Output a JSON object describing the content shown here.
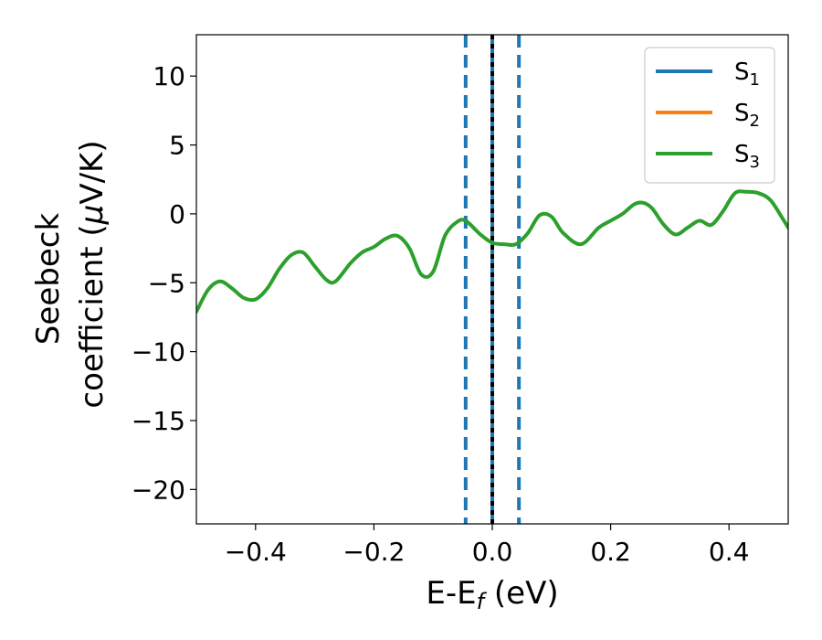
{
  "chart_data": {
    "type": "line",
    "xlabel": {
      "main": "E-E",
      "sub": "f",
      "tail": " (eV)"
    },
    "ylabel": {
      "line1": "Seebeck",
      "line2_pre": "coefficient  (",
      "mu": "μ",
      "line2_post": "V/K)"
    },
    "xlim": [
      -0.5,
      0.5
    ],
    "ylim": [
      -22.5,
      13
    ],
    "xticks": [
      -0.4,
      -0.2,
      0.0,
      0.2,
      0.4
    ],
    "xtick_labels": [
      "−0.4",
      "−0.2",
      "0.0",
      "0.2",
      "0.4"
    ],
    "yticks": [
      10,
      5,
      0,
      -5,
      -10,
      -15,
      -20
    ],
    "ytick_labels": [
      "10",
      "5",
      "0",
      "−5",
      "−10",
      "−15",
      "−20"
    ],
    "grid": false,
    "legend_position": "top-right",
    "series": [
      {
        "name": "S",
        "sub": "1",
        "color": "#1f77b4",
        "x": [],
        "y": []
      },
      {
        "name": "S",
        "sub": "2",
        "color": "#ff7f0e",
        "x": [],
        "y": []
      },
      {
        "name": "S",
        "sub": "3",
        "color": "#2ca02c",
        "x": [
          -0.5,
          -0.48,
          -0.46,
          -0.44,
          -0.42,
          -0.4,
          -0.38,
          -0.36,
          -0.34,
          -0.32,
          -0.3,
          -0.28,
          -0.265,
          -0.24,
          -0.22,
          -0.2,
          -0.18,
          -0.16,
          -0.14,
          -0.12,
          -0.1,
          -0.08,
          -0.06,
          -0.045,
          -0.02,
          0.0,
          0.02,
          0.04,
          0.06,
          0.08,
          0.1,
          0.12,
          0.15,
          0.18,
          0.2,
          0.22,
          0.24,
          0.255,
          0.27,
          0.29,
          0.31,
          0.33,
          0.35,
          0.37,
          0.39,
          0.41,
          0.43,
          0.45,
          0.47,
          0.49,
          0.5
        ],
        "y": [
          -7.1,
          -5.5,
          -4.9,
          -5.4,
          -6.1,
          -6.2,
          -5.4,
          -4.0,
          -3.0,
          -2.8,
          -3.8,
          -4.8,
          -4.9,
          -3.6,
          -2.8,
          -2.4,
          -1.8,
          -1.6,
          -2.5,
          -4.4,
          -4.2,
          -1.6,
          -0.6,
          -0.5,
          -1.5,
          -2.1,
          -2.2,
          -2.2,
          -1.4,
          -0.1,
          -0.2,
          -1.4,
          -2.2,
          -1.0,
          -0.5,
          0.0,
          0.7,
          0.8,
          0.4,
          -0.8,
          -1.5,
          -1.0,
          -0.5,
          -0.8,
          0.2,
          1.5,
          1.6,
          1.5,
          1.0,
          -0.3,
          -1.0
        ]
      }
    ],
    "vlines": [
      {
        "x": -0.045,
        "style": "dashed",
        "color": "#1f77b4"
      },
      {
        "x": 0.045,
        "style": "dashed",
        "color": "#1f77b4"
      },
      {
        "x": 0.0,
        "style": "solid",
        "color": "#1f77b4"
      },
      {
        "x": 0.0,
        "style": "dotted",
        "color": "#000000"
      }
    ]
  }
}
